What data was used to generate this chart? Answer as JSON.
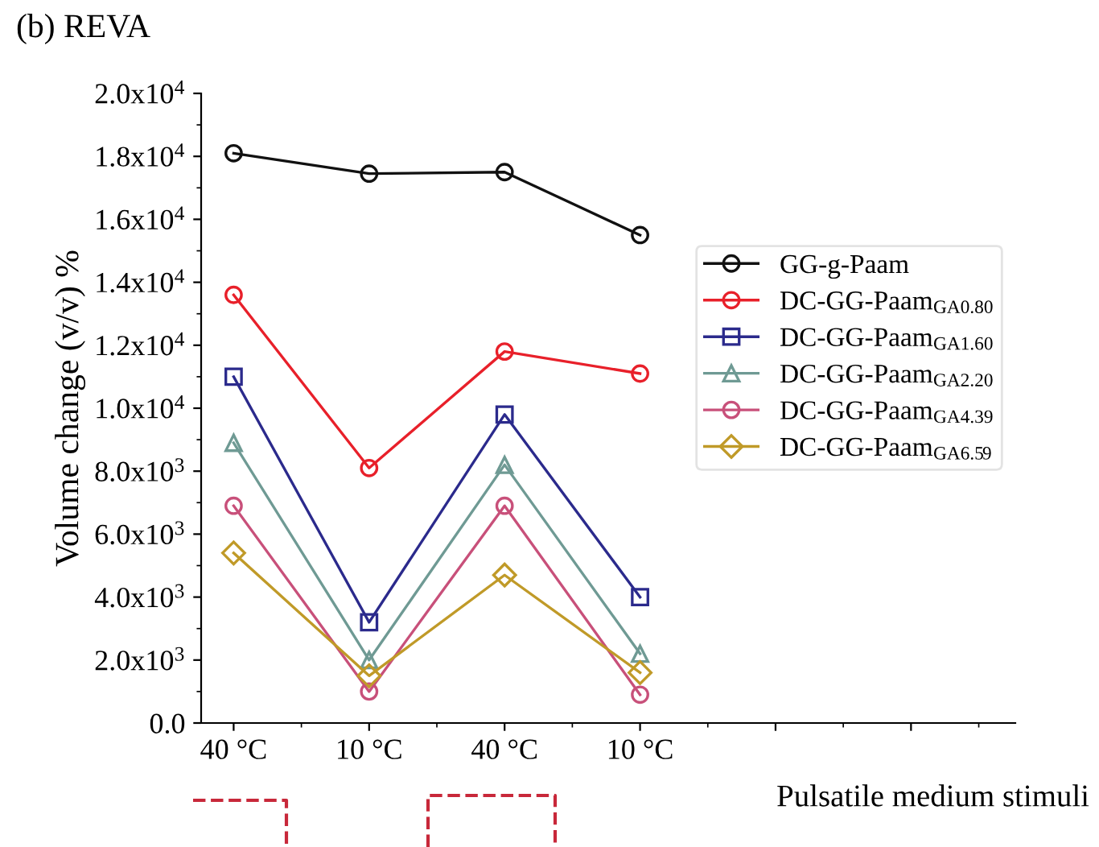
{
  "chart_data": {
    "type": "line",
    "title": "(b) REVA",
    "ylabel": "Volume change (v/v) %",
    "categories": [
      "40 °C",
      "10 °C",
      "40 °C",
      "10 °C",
      null,
      null
    ],
    "series": [
      {
        "name": "GG-g-Paam",
        "color": "#111111",
        "marker": "circle",
        "values": [
          18100,
          17450,
          17500,
          15500,
          null,
          null
        ]
      },
      {
        "name": "DC-GG-Paam$_{GA0.80}$",
        "color": "#e8202a",
        "marker": "circle",
        "values": [
          13600,
          8100,
          11800,
          11100,
          null,
          null
        ]
      },
      {
        "name": "DC-GG-Paam$_{GA1.60}$",
        "color": "#2b2a8c",
        "marker": "square",
        "values": [
          11000,
          3200,
          9800,
          4000,
          null,
          null
        ]
      },
      {
        "name": "DC-GG-Paam$_{GA2.20}$",
        "color": "#6f9a94",
        "marker": "triangle",
        "values": [
          8900,
          2000,
          8200,
          2200,
          null,
          null
        ]
      },
      {
        "name": "DC-GG-Paam$_{GA4.39}$",
        "color": "#c8507a",
        "marker": "circle",
        "values": [
          6900,
          1000,
          6900,
          900,
          null,
          null
        ]
      },
      {
        "name": "DC-GG-Paam$_{GA6.59}$",
        "color": "#c09a28",
        "marker": "diamond",
        "values": [
          5400,
          1500,
          4700,
          1600,
          null,
          null
        ]
      }
    ],
    "ylim": [
      0,
      20000
    ],
    "yticks": [
      {
        "value": 0,
        "label": "0.0"
      },
      {
        "value": 2000,
        "label": "2.0x10$^{3}$"
      },
      {
        "value": 4000,
        "label": "4.0x10$^{3}$"
      },
      {
        "value": 6000,
        "label": "6.0x10$^{3}$"
      },
      {
        "value": 8000,
        "label": "8.0x10$^{3}$"
      },
      {
        "value": 10000,
        "label": "1.0x10$^{4}$"
      },
      {
        "value": 12000,
        "label": "1.2x10$^{4}$"
      },
      {
        "value": 14000,
        "label": "1.4x10$^{4}$"
      },
      {
        "value": 16000,
        "label": "1.6x10$^{4}$"
      },
      {
        "value": 18000,
        "label": "1.8x10$^{4}$"
      },
      {
        "value": 20000,
        "label": "2.0x10$^{4}$"
      }
    ],
    "grid": false,
    "legend": "right",
    "line_style": "solid",
    "annotations": [
      "Pulsatile medium stimuli"
    ]
  }
}
